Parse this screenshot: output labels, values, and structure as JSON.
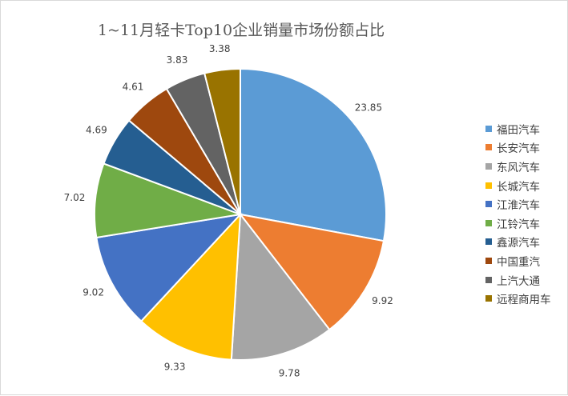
{
  "chart_data": {
    "type": "pie",
    "title": "1~11月轻卡Top10企业销量市场份额占比",
    "legend_position": "right",
    "categories": [
      "福田汽车",
      "长安汽车",
      "东风汽车",
      "长城汽车",
      "江淮汽车",
      "江铃汽车",
      "鑫源汽车",
      "中国重汽",
      "上汽大通",
      "远程商用车"
    ],
    "values": [
      23.85,
      9.92,
      9.78,
      9.33,
      9.02,
      7.02,
      4.69,
      4.61,
      3.83,
      3.38
    ],
    "data_labels": [
      "23.85",
      "9.92",
      "9.78",
      "9.33",
      "9.02",
      "7.02",
      "4.69",
      "4.61",
      "3.83",
      "3.38"
    ],
    "colors": [
      "#5b9bd5",
      "#ed7d31",
      "#a5a5a5",
      "#ffc000",
      "#4472c4",
      "#70ad47",
      "#255e91",
      "#9e480e",
      "#636363",
      "#997300"
    ]
  }
}
